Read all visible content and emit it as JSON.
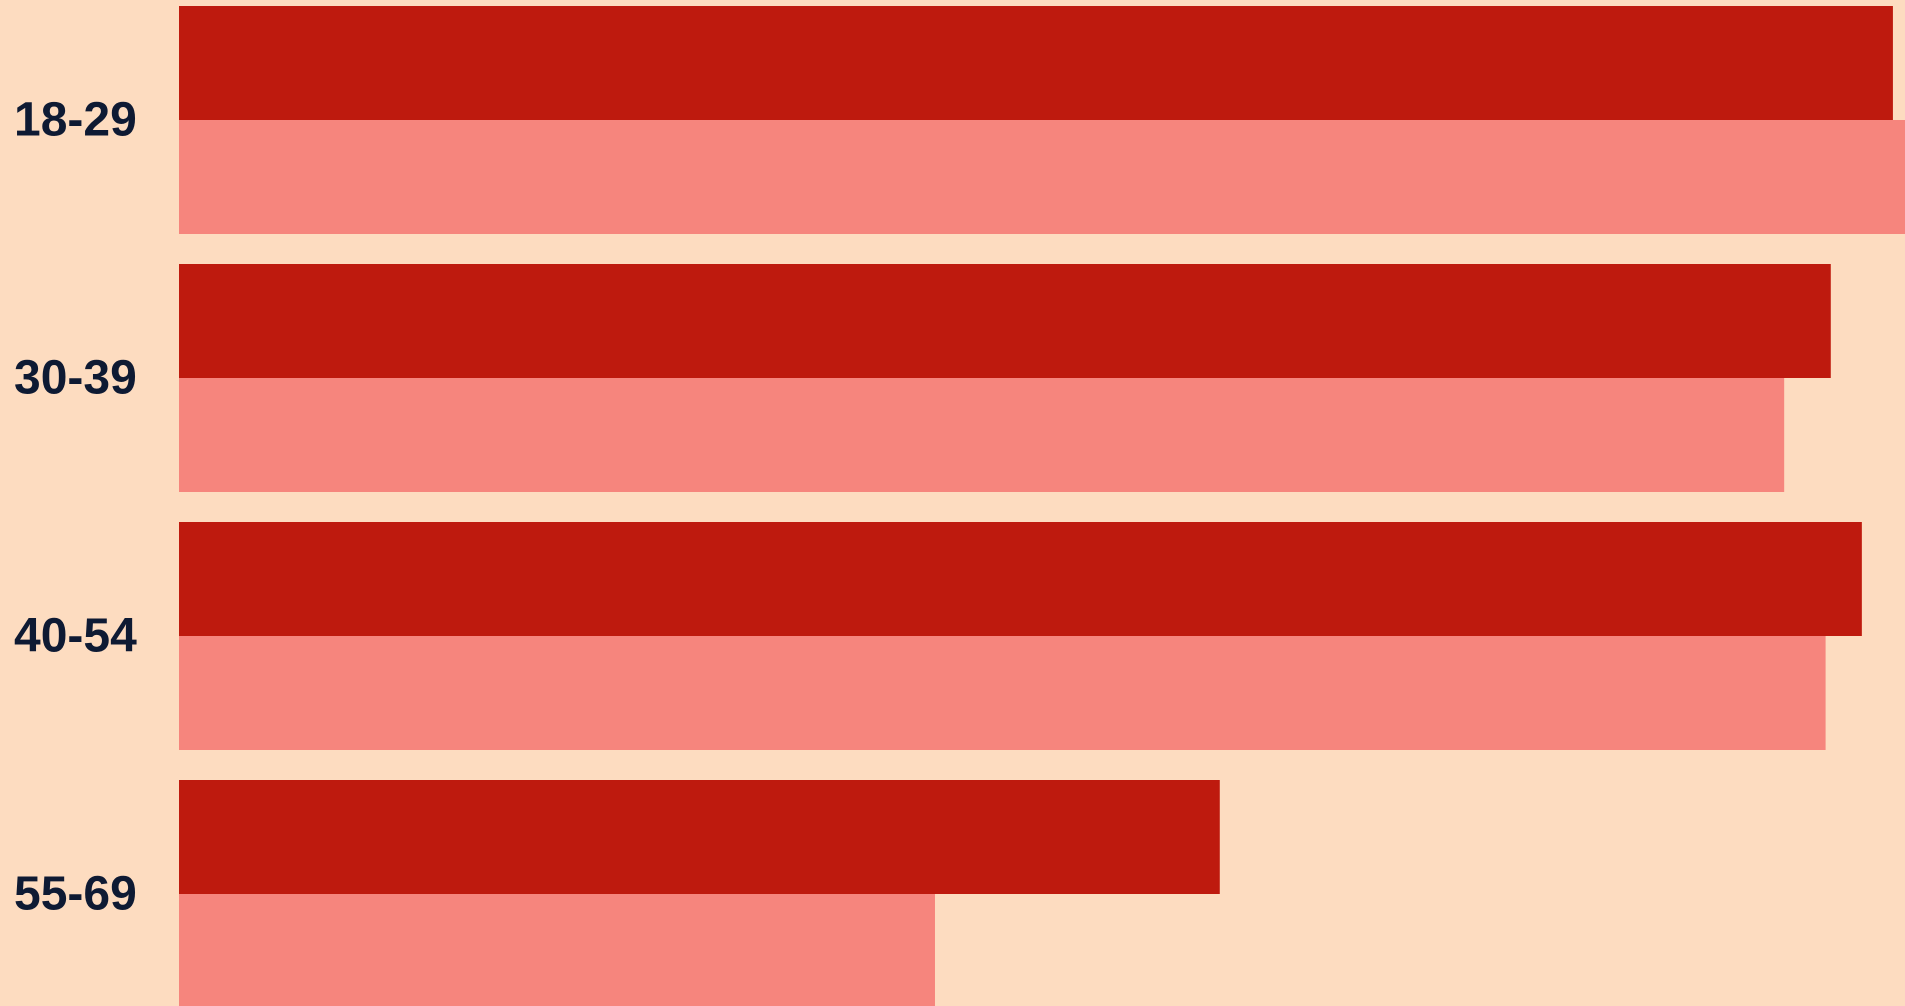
{
  "chart_data": {
    "type": "bar",
    "orientation": "horizontal",
    "categories": [
      "18-29",
      "30-39",
      "40-54",
      "55-69"
    ],
    "series": [
      {
        "values": [
          0.993,
          0.957,
          0.975,
          0.603
        ],
        "color": "#BE1A0E"
      },
      {
        "values": [
          1.0,
          0.93,
          0.954,
          0.438
        ],
        "color": "#F6857D"
      }
    ],
    "xlim": [
      0,
      1
    ],
    "grid": false,
    "legend": "none",
    "title": "",
    "xlabel": "",
    "ylabel": ""
  },
  "colors": {
    "background": "#FDDCC0",
    "label_text": "#0E1A33"
  }
}
